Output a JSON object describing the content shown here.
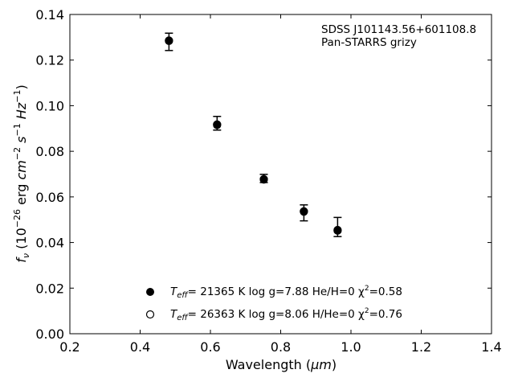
{
  "chart_data": {
    "type": "scatter",
    "xlabel_main": "Wavelength (",
    "xlabel_unit": "μm",
    "xlabel_close": ")",
    "ylabel": {
      "symbol": "f",
      "sub": "ν",
      "text1": " (10",
      "exp1": "−26",
      "text2": " erg ",
      "cm": "cm",
      "exp2": "−2",
      "s": " s",
      "exp3": "−1",
      "hz": " Hz",
      "exp4": "−1",
      "close": ")"
    },
    "xlim": [
      0.2,
      1.4
    ],
    "ylim": [
      0.0,
      0.14
    ],
    "xticks": [
      0.2,
      0.4,
      0.6,
      0.8,
      1.0,
      1.2,
      1.4
    ],
    "xtick_labels": [
      "0.2",
      "0.4",
      "0.6",
      "0.8",
      "1.0",
      "1.2",
      "1.4"
    ],
    "yticks": [
      0.0,
      0.02,
      0.04,
      0.06,
      0.08,
      0.1,
      0.12,
      0.14
    ],
    "ytick_labels": [
      "0.00",
      "0.02",
      "0.04",
      "0.06",
      "0.08",
      "0.10",
      "0.12",
      "0.14"
    ],
    "grid": false,
    "annotation": [
      "SDSS J101143.56+601108.8",
      "Pan-STARRS grizy"
    ],
    "legend_placement": "lower-center",
    "observed": {
      "x": [
        0.482,
        0.619,
        0.752,
        0.866,
        0.962
      ],
      "y": [
        0.128,
        0.0923,
        0.0681,
        0.053,
        0.0468
      ],
      "err_low": [
        0.0038,
        0.003,
        0.0018,
        0.0035,
        0.0042
      ],
      "err_high": [
        0.0038,
        0.003,
        0.0018,
        0.0035,
        0.0042
      ]
    },
    "series": [
      {
        "name_sym": "T",
        "name_sub": "eff",
        "name_rest": "= 21365 K  log g=7.88  He/H=0  χ",
        "name_sup": "2",
        "name_end": "=0.58",
        "marker": "filled-circle",
        "x": [
          0.482,
          0.619,
          0.752,
          0.866,
          0.962
        ],
        "y": [
          0.1284,
          0.0915,
          0.0676,
          0.0535,
          0.0452
        ]
      },
      {
        "name_sym": "T",
        "name_sub": "eff",
        "name_rest": "= 26363 K  log g=8.06  H/He=0  χ",
        "name_sup": "2",
        "name_end": "=0.76",
        "marker": "open-circle",
        "x": [
          0.482,
          0.619,
          0.752,
          0.866,
          0.962
        ],
        "y": [
          0.1286,
          0.0918,
          0.0678,
          0.0537,
          0.0455
        ]
      }
    ],
    "colors": {
      "marker": "#000000",
      "axis": "#000000"
    }
  }
}
